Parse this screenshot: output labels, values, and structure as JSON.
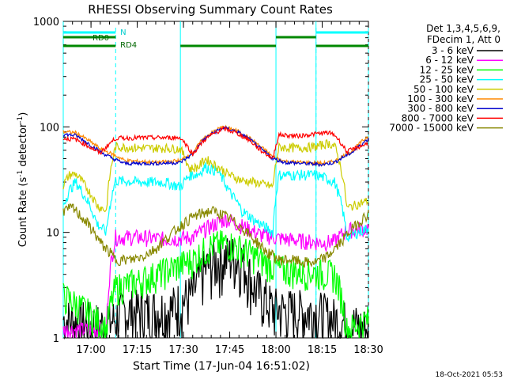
{
  "chart_data": {
    "type": "line",
    "title": "RHESSI Observing Summary Count Rates",
    "xlabel": "Start Time (17-Jun-04 16:51:02)",
    "ylabel_parts": [
      "Count Rate (s",
      "-1",
      " detector",
      "-1",
      ")"
    ],
    "yscale": "log",
    "ylim": [
      1,
      1000
    ],
    "xlim_minutes": [
      0,
      99
    ],
    "x_ticks": [
      {
        "minute": 9,
        "label": "17:00"
      },
      {
        "minute": 24,
        "label": "17:15"
      },
      {
        "minute": 39,
        "label": "17:30"
      },
      {
        "minute": 54,
        "label": "17:45"
      },
      {
        "minute": 69,
        "label": "18:00"
      },
      {
        "minute": 84,
        "label": "18:15"
      },
      {
        "minute": 99,
        "label": "18:30"
      }
    ],
    "y_ticks": [
      {
        "value": 1,
        "label": "1"
      },
      {
        "value": 10,
        "label": "10"
      },
      {
        "value": 100,
        "label": "100"
      },
      {
        "value": 1000,
        "label": "1000"
      }
    ],
    "legend_header": [
      "Det 1,3,4,5,6,9,",
      "FDecim 1, Att 0"
    ],
    "series": [
      {
        "name": "3 - 6 keV",
        "color": "#000000",
        "points": [
          [
            0,
            1.5
          ],
          [
            14,
            1.3
          ],
          [
            20,
            1.8
          ],
          [
            28,
            1.8
          ],
          [
            35,
            1.9
          ],
          [
            42,
            2.6
          ],
          [
            46,
            4.5
          ],
          [
            50,
            5.5
          ],
          [
            54,
            6.0
          ],
          [
            58,
            5.5
          ],
          [
            62,
            3.0
          ],
          [
            68,
            1.9
          ],
          [
            76,
            1.8
          ],
          [
            82,
            1.8
          ],
          [
            88,
            1.5
          ],
          [
            99,
            1.2
          ]
        ]
      },
      {
        "name": "6 - 12 keV",
        "color": "#ff00ff",
        "points": [
          [
            0,
            1.2
          ],
          [
            14,
            1.2
          ],
          [
            17,
            9.0
          ],
          [
            25,
            9.0
          ],
          [
            33,
            8.6
          ],
          [
            42,
            9.0
          ],
          [
            48,
            11.5
          ],
          [
            53,
            13.5
          ],
          [
            58,
            11.5
          ],
          [
            64,
            9.5
          ],
          [
            70,
            8.8
          ],
          [
            78,
            8.3
          ],
          [
            84,
            8.0
          ],
          [
            88,
            8.2
          ],
          [
            92,
            10.5
          ],
          [
            99,
            11.0
          ]
        ]
      },
      {
        "name": "12 - 25 keV",
        "color": "#00ff00",
        "points": [
          [
            0,
            2.5
          ],
          [
            14,
            1.2
          ],
          [
            17,
            3.0
          ],
          [
            25,
            3.5
          ],
          [
            33,
            4.3
          ],
          [
            42,
            5.5
          ],
          [
            48,
            7.5
          ],
          [
            53,
            8.0
          ],
          [
            58,
            7.0
          ],
          [
            64,
            5.5
          ],
          [
            70,
            4.5
          ],
          [
            76,
            4.3
          ],
          [
            82,
            4.2
          ],
          [
            88,
            4.0
          ],
          [
            92,
            1.2
          ],
          [
            99,
            1.5
          ]
        ]
      },
      {
        "name": "25 - 50 keV",
        "color": "#00ffff",
        "points": [
          [
            0,
            18
          ],
          [
            2,
            25
          ],
          [
            4,
            30
          ],
          [
            7,
            22
          ],
          [
            11,
            12
          ],
          [
            14,
            10
          ],
          [
            17,
            31
          ],
          [
            25,
            30
          ],
          [
            33,
            30
          ],
          [
            38,
            27
          ],
          [
            41,
            35
          ],
          [
            44,
            36
          ],
          [
            46,
            42
          ],
          [
            50,
            38
          ],
          [
            54,
            24
          ],
          [
            58,
            16
          ],
          [
            62,
            13
          ],
          [
            66,
            11
          ],
          [
            68,
            10
          ],
          [
            70,
            35
          ],
          [
            76,
            35
          ],
          [
            82,
            35
          ],
          [
            86,
            32
          ],
          [
            88,
            30
          ],
          [
            92,
            9
          ],
          [
            99,
            11
          ]
        ]
      },
      {
        "name": "50 - 100 keV",
        "color": "#cccc00",
        "points": [
          [
            0,
            28
          ],
          [
            2,
            35
          ],
          [
            4,
            36
          ],
          [
            7,
            28
          ],
          [
            11,
            18
          ],
          [
            14,
            16
          ],
          [
            17,
            65
          ],
          [
            25,
            63
          ],
          [
            33,
            63
          ],
          [
            38,
            62
          ],
          [
            41,
            40
          ],
          [
            44,
            42
          ],
          [
            46,
            50
          ],
          [
            50,
            42
          ],
          [
            54,
            35
          ],
          [
            58,
            31
          ],
          [
            62,
            30
          ],
          [
            66,
            28
          ],
          [
            68,
            27
          ],
          [
            70,
            64
          ],
          [
            76,
            63
          ],
          [
            82,
            65
          ],
          [
            86,
            70
          ],
          [
            88,
            66
          ],
          [
            92,
            17
          ],
          [
            99,
            20
          ]
        ]
      },
      {
        "name": "100 - 300 keV",
        "color": "#ff8800",
        "points": [
          [
            0,
            90
          ],
          [
            4,
            88
          ],
          [
            8,
            75
          ],
          [
            12,
            62
          ],
          [
            16,
            55
          ],
          [
            20,
            48
          ],
          [
            30,
            46
          ],
          [
            38,
            48
          ],
          [
            42,
            57
          ],
          [
            46,
            80
          ],
          [
            50,
            95
          ],
          [
            52,
            100
          ],
          [
            56,
            93
          ],
          [
            60,
            80
          ],
          [
            64,
            65
          ],
          [
            68,
            52
          ],
          [
            72,
            47
          ],
          [
            84,
            45
          ],
          [
            88,
            47
          ],
          [
            94,
            60
          ],
          [
            99,
            82
          ]
        ]
      },
      {
        "name": "300 - 800 keV",
        "color": "#0000cc",
        "points": [
          [
            0,
            85
          ],
          [
            4,
            83
          ],
          [
            8,
            70
          ],
          [
            12,
            58
          ],
          [
            16,
            50
          ],
          [
            20,
            45
          ],
          [
            30,
            45
          ],
          [
            38,
            46
          ],
          [
            42,
            55
          ],
          [
            46,
            78
          ],
          [
            50,
            92
          ],
          [
            52,
            98
          ],
          [
            56,
            91
          ],
          [
            60,
            78
          ],
          [
            64,
            62
          ],
          [
            68,
            50
          ],
          [
            72,
            46
          ],
          [
            84,
            44
          ],
          [
            88,
            46
          ],
          [
            94,
            58
          ],
          [
            99,
            77
          ]
        ]
      },
      {
        "name": "800 - 7000 keV",
        "color": "#ff0000",
        "points": [
          [
            0,
            78
          ],
          [
            4,
            76
          ],
          [
            8,
            66
          ],
          [
            12,
            56
          ],
          [
            17,
            78
          ],
          [
            25,
            79
          ],
          [
            33,
            79
          ],
          [
            38,
            79
          ],
          [
            42,
            55
          ],
          [
            46,
            76
          ],
          [
            50,
            90
          ],
          [
            52,
            96
          ],
          [
            56,
            88
          ],
          [
            60,
            76
          ],
          [
            64,
            60
          ],
          [
            68,
            50
          ],
          [
            70,
            84
          ],
          [
            76,
            82
          ],
          [
            82,
            86
          ],
          [
            86,
            88
          ],
          [
            88,
            84
          ],
          [
            92,
            58
          ],
          [
            99,
            70
          ]
        ]
      },
      {
        "name": "7000 - 15000 keV",
        "color": "#888800",
        "points": [
          [
            0,
            16
          ],
          [
            3,
            17
          ],
          [
            6,
            14
          ],
          [
            9,
            11
          ],
          [
            12,
            8
          ],
          [
            14,
            7
          ],
          [
            17,
            5.5
          ],
          [
            22,
            5.5
          ],
          [
            26,
            6.0
          ],
          [
            30,
            7.0
          ],
          [
            34,
            9.0
          ],
          [
            38,
            11.5
          ],
          [
            42,
            14
          ],
          [
            46,
            15.5
          ],
          [
            48,
            16
          ],
          [
            50,
            15.5
          ],
          [
            54,
            13.5
          ],
          [
            58,
            11
          ],
          [
            62,
            8.5
          ],
          [
            66,
            6.5
          ],
          [
            70,
            5.5
          ],
          [
            74,
            5.5
          ],
          [
            78,
            5.2
          ],
          [
            82,
            5.2
          ],
          [
            86,
            6.0
          ],
          [
            90,
            8.0
          ],
          [
            94,
            11
          ],
          [
            99,
            15
          ]
        ]
      }
    ],
    "attenuator_bars": {
      "N_label": "N",
      "RD0_label": "RD0",
      "RD4_label": "RD4",
      "N_segments": [
        [
          0,
          17
        ],
        [
          82,
          99
        ]
      ],
      "RD0_segments": [
        [
          0,
          17
        ],
        [
          38,
          38
        ],
        [
          69,
          82
        ]
      ],
      "RD4_segments": [
        [
          0,
          17
        ],
        [
          38,
          69
        ],
        [
          82,
          99
        ]
      ]
    },
    "night_intervals_dashed": [
      17,
      82,
      99
    ],
    "night_lines_solid": [
      0,
      38,
      69,
      82
    ],
    "timestamp": "18-Oct-2021 05:53"
  }
}
